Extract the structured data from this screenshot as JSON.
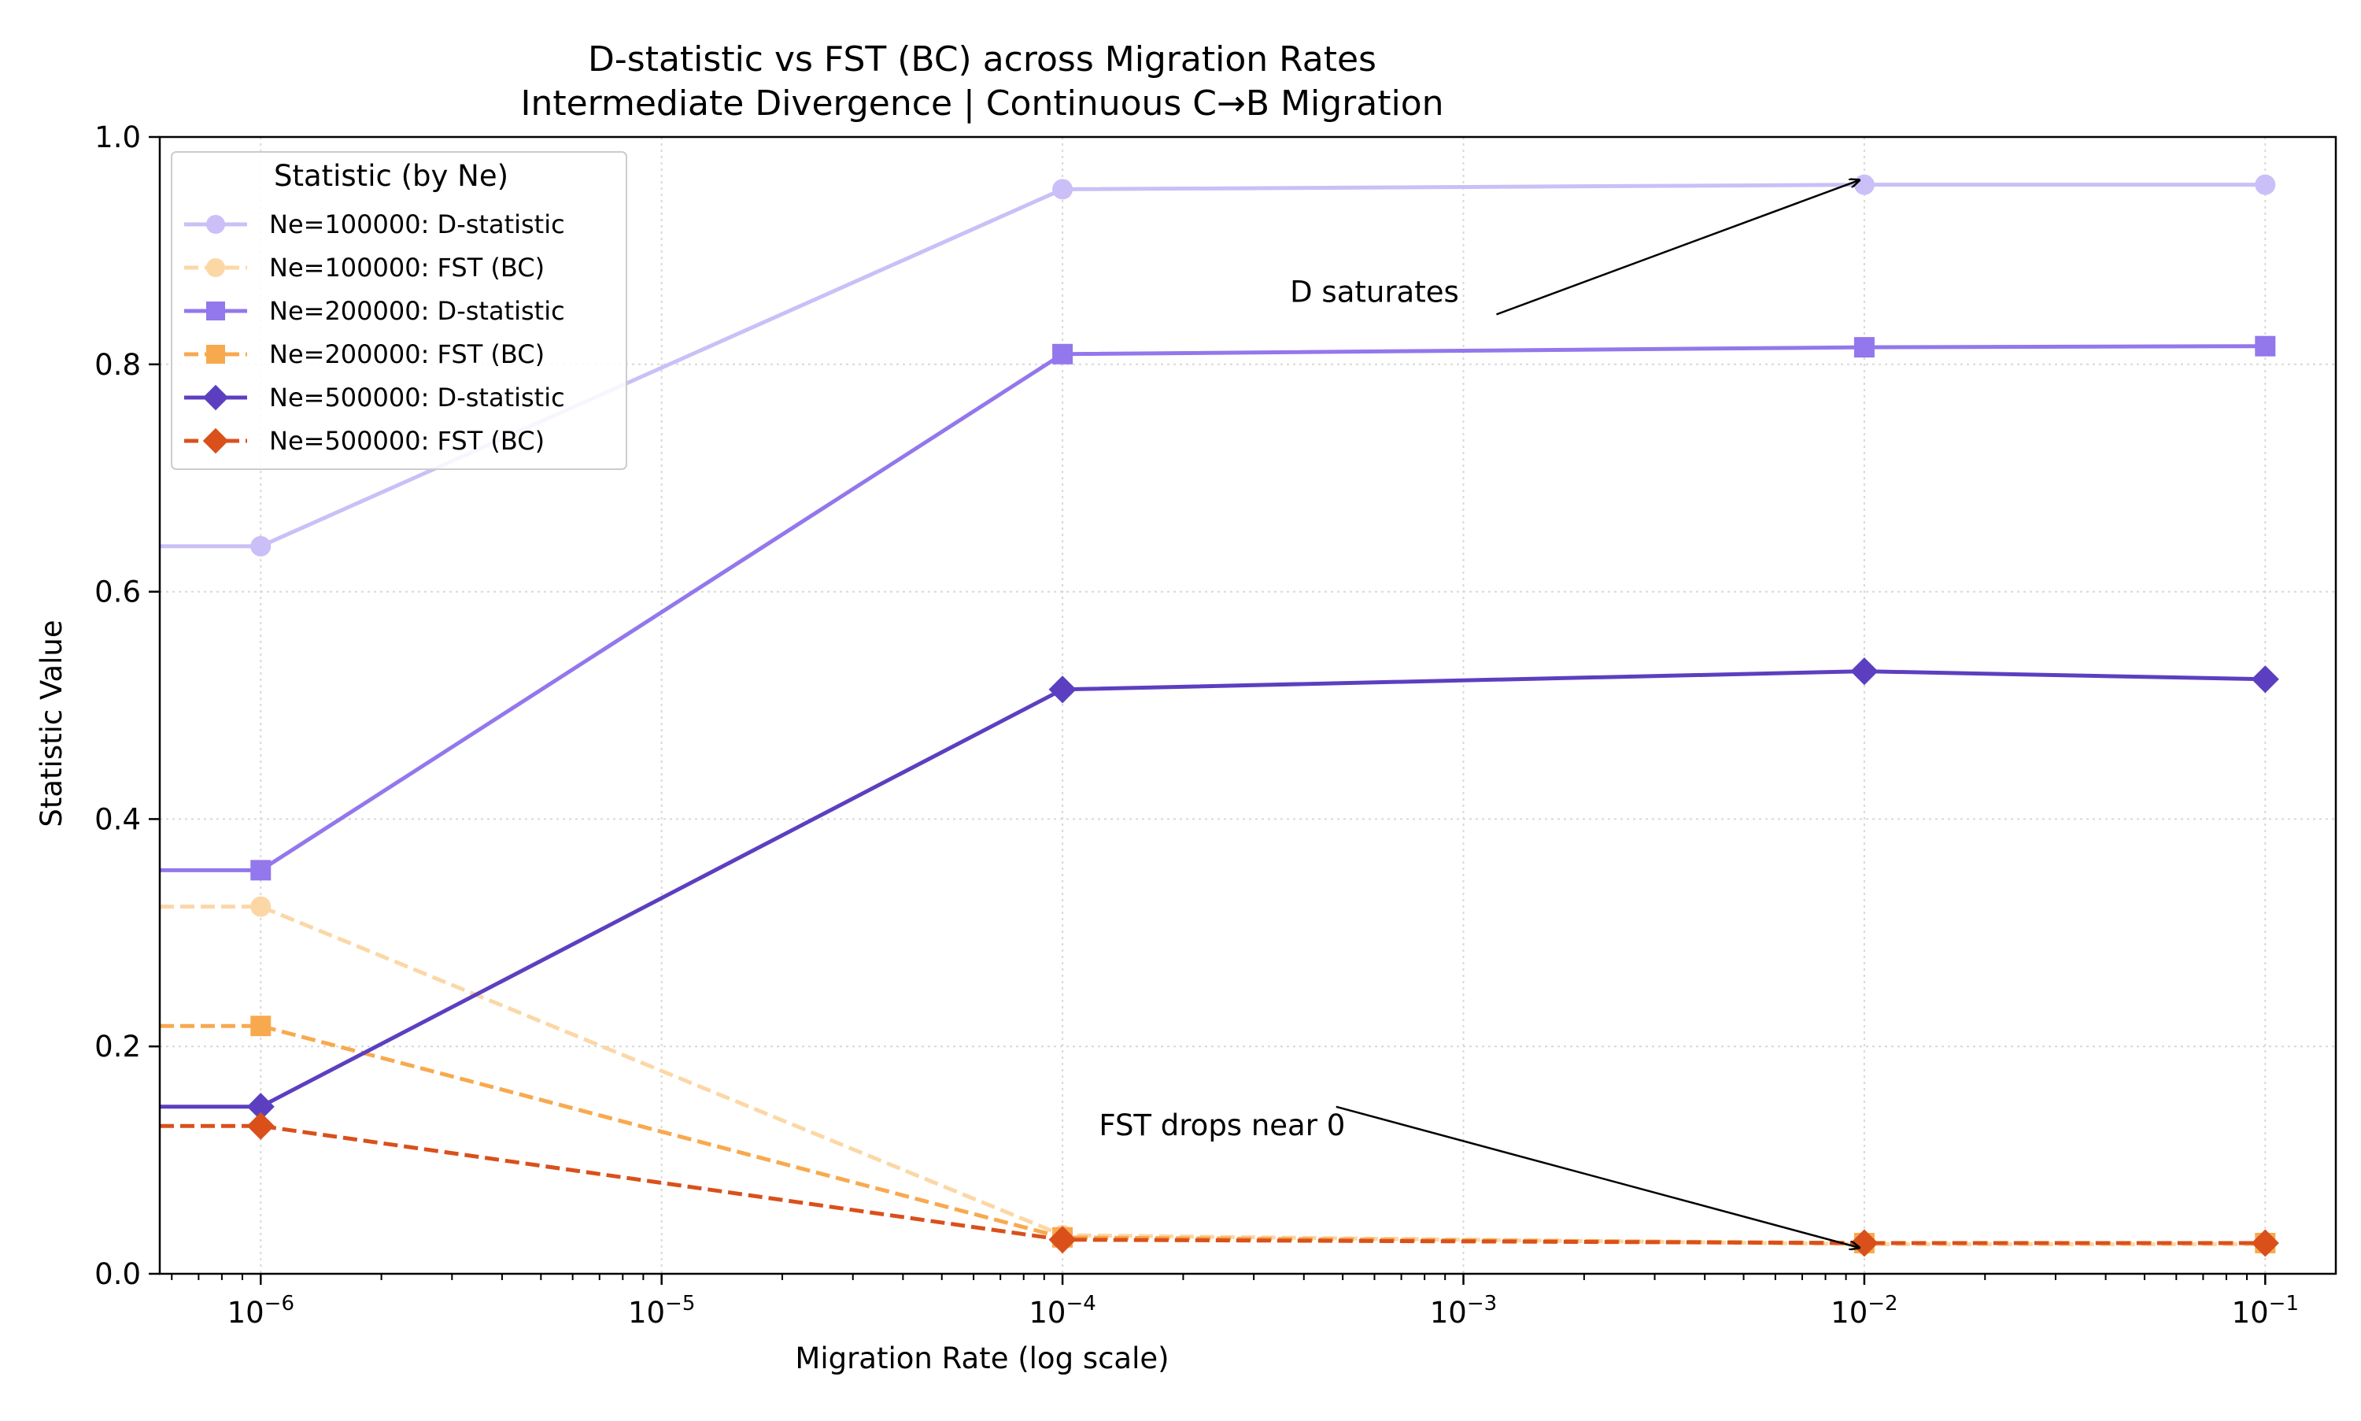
{
  "chart_data": {
    "type": "line",
    "title": "D-statistic vs FST (BC) across Migration Rates",
    "subtitle": "Intermediate Divergence | Continuous C→B Migration",
    "xlabel": "Migration Rate (log scale)",
    "ylabel": "Statistic Value",
    "x_scale": "log",
    "xlim": [
      5.6e-07,
      0.15
    ],
    "ylim": [
      0,
      1.0
    ],
    "x_ticks": [
      {
        "base": "10",
        "exp": "−6",
        "value": 1e-06
      },
      {
        "base": "10",
        "exp": "−5",
        "value": 1e-05
      },
      {
        "base": "10",
        "exp": "−4",
        "value": 0.0001
      },
      {
        "base": "10",
        "exp": "−3",
        "value": 0.001
      },
      {
        "base": "10",
        "exp": "−2",
        "value": 0.01
      },
      {
        "base": "10",
        "exp": "−1",
        "value": 0.1
      }
    ],
    "y_ticks": [
      {
        "label": "0.0",
        "value": 0.0
      },
      {
        "label": "0.2",
        "value": 0.2
      },
      {
        "label": "0.4",
        "value": 0.4
      },
      {
        "label": "0.6",
        "value": 0.6
      },
      {
        "label": "0.8",
        "value": 0.8
      },
      {
        "label": "1.0",
        "value": 1.0
      }
    ],
    "grid": true,
    "legend_title": "Statistic (by Ne)",
    "legend_position": "upper-left",
    "x": [
      0,
      1e-06,
      0.0001,
      0.01,
      0.1
    ],
    "series": [
      {
        "name": "Ne=100000: D-statistic",
        "color": "#cbbff7",
        "dash": "solid",
        "marker": "circle",
        "values": [
          0.64,
          0.64,
          0.954,
          0.958,
          0.958
        ]
      },
      {
        "name": "Ne=100000: FST (BC)",
        "color": "#fcd7a6",
        "dash": "dashed",
        "marker": "circle",
        "values": [
          0.323,
          0.323,
          0.034,
          0.026,
          0.026
        ]
      },
      {
        "name": "Ne=200000: D-statistic",
        "color": "#9377ec",
        "dash": "solid",
        "marker": "square",
        "values": [
          0.355,
          0.355,
          0.809,
          0.815,
          0.816
        ]
      },
      {
        "name": "Ne=200000: FST (BC)",
        "color": "#f8a94e",
        "dash": "dashed",
        "marker": "square",
        "values": [
          0.218,
          0.218,
          0.032,
          0.027,
          0.027
        ]
      },
      {
        "name": "Ne=500000: D-statistic",
        "color": "#5c3fc0",
        "dash": "solid",
        "marker": "diamond",
        "values": [
          0.147,
          0.147,
          0.514,
          0.53,
          0.523
        ]
      },
      {
        "name": "Ne=500000: FST (BC)",
        "color": "#d9501b",
        "dash": "dashed",
        "marker": "diamond",
        "values": [
          0.13,
          0.13,
          0.03,
          0.027,
          0.027
        ]
      }
    ],
    "annotations": [
      {
        "text": "D saturates",
        "target_x": 0.01,
        "target_y": 0.958,
        "text_x": 0.0006,
        "text_y": 0.855
      },
      {
        "text": "FST drops near 0",
        "target_x": 0.01,
        "target_y": 0.027,
        "text_x": 0.00025,
        "text_y": 0.122
      }
    ]
  }
}
